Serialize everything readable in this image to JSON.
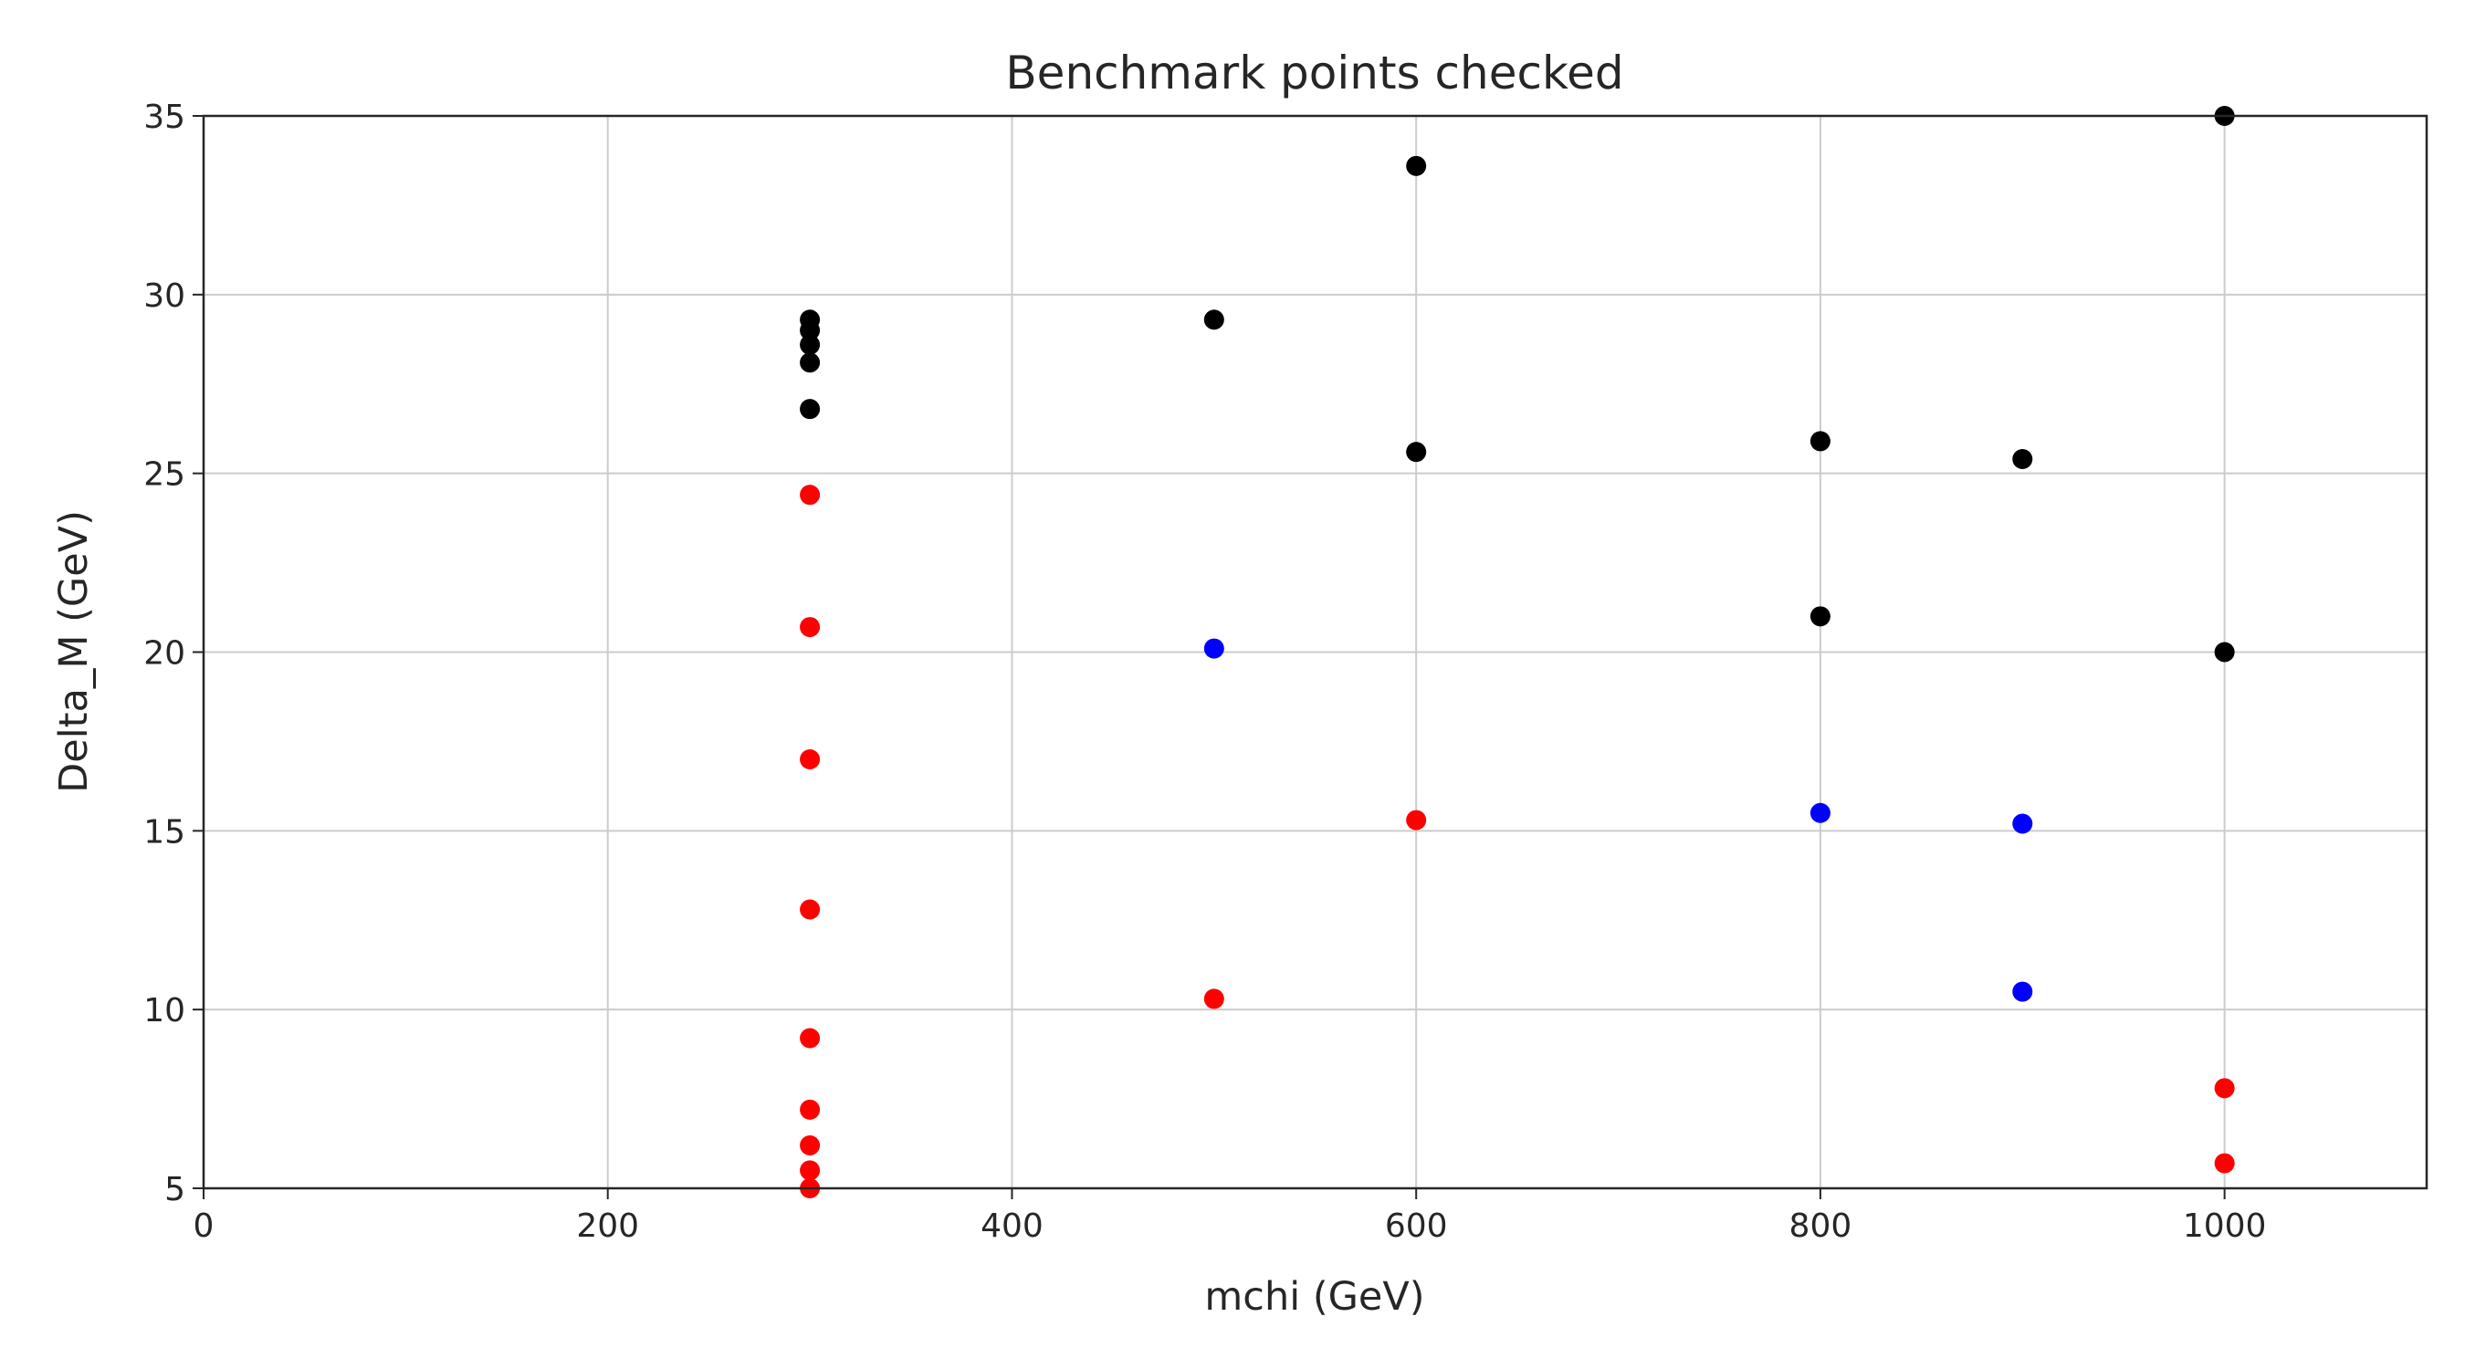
{
  "chart_data": {
    "type": "scatter",
    "title": "Benchmark points checked",
    "xlabel": "mchi (GeV)",
    "ylabel": "Delta_M (GeV)",
    "xlim": [
      0,
      1100
    ],
    "ylim": [
      5,
      35
    ],
    "xticks": [
      0,
      200,
      400,
      600,
      800,
      1000
    ],
    "yticks": [
      5,
      10,
      15,
      20,
      25,
      30,
      35
    ],
    "grid": true,
    "colors": {
      "black": "#000000",
      "red": "#ff0000",
      "blue": "#0000ff"
    },
    "series": [
      {
        "color": "#000000",
        "points": [
          {
            "x": 300,
            "y": 29.3
          },
          {
            "x": 300,
            "y": 29.0
          },
          {
            "x": 300,
            "y": 28.6
          },
          {
            "x": 300,
            "y": 28.1
          },
          {
            "x": 300,
            "y": 26.8
          },
          {
            "x": 500,
            "y": 29.3
          },
          {
            "x": 600,
            "y": 33.6
          },
          {
            "x": 600,
            "y": 25.6
          },
          {
            "x": 800,
            "y": 25.9
          },
          {
            "x": 800,
            "y": 21.0
          },
          {
            "x": 900,
            "y": 25.4
          },
          {
            "x": 1000,
            "y": 35.0
          },
          {
            "x": 1000,
            "y": 20.0
          }
        ]
      },
      {
        "color": "#ff0000",
        "points": [
          {
            "x": 300,
            "y": 24.4
          },
          {
            "x": 300,
            "y": 20.7
          },
          {
            "x": 300,
            "y": 17.0
          },
          {
            "x": 300,
            "y": 12.8
          },
          {
            "x": 300,
            "y": 9.2
          },
          {
            "x": 300,
            "y": 7.2
          },
          {
            "x": 300,
            "y": 6.2
          },
          {
            "x": 300,
            "y": 5.5
          },
          {
            "x": 300,
            "y": 5.0
          },
          {
            "x": 500,
            "y": 10.3
          },
          {
            "x": 600,
            "y": 15.3
          },
          {
            "x": 1000,
            "y": 7.8
          },
          {
            "x": 1000,
            "y": 5.7
          }
        ]
      },
      {
        "color": "#0000ff",
        "points": [
          {
            "x": 500,
            "y": 20.1
          },
          {
            "x": 800,
            "y": 15.5
          },
          {
            "x": 900,
            "y": 15.2
          },
          {
            "x": 900,
            "y": 10.5
          }
        ]
      }
    ]
  }
}
